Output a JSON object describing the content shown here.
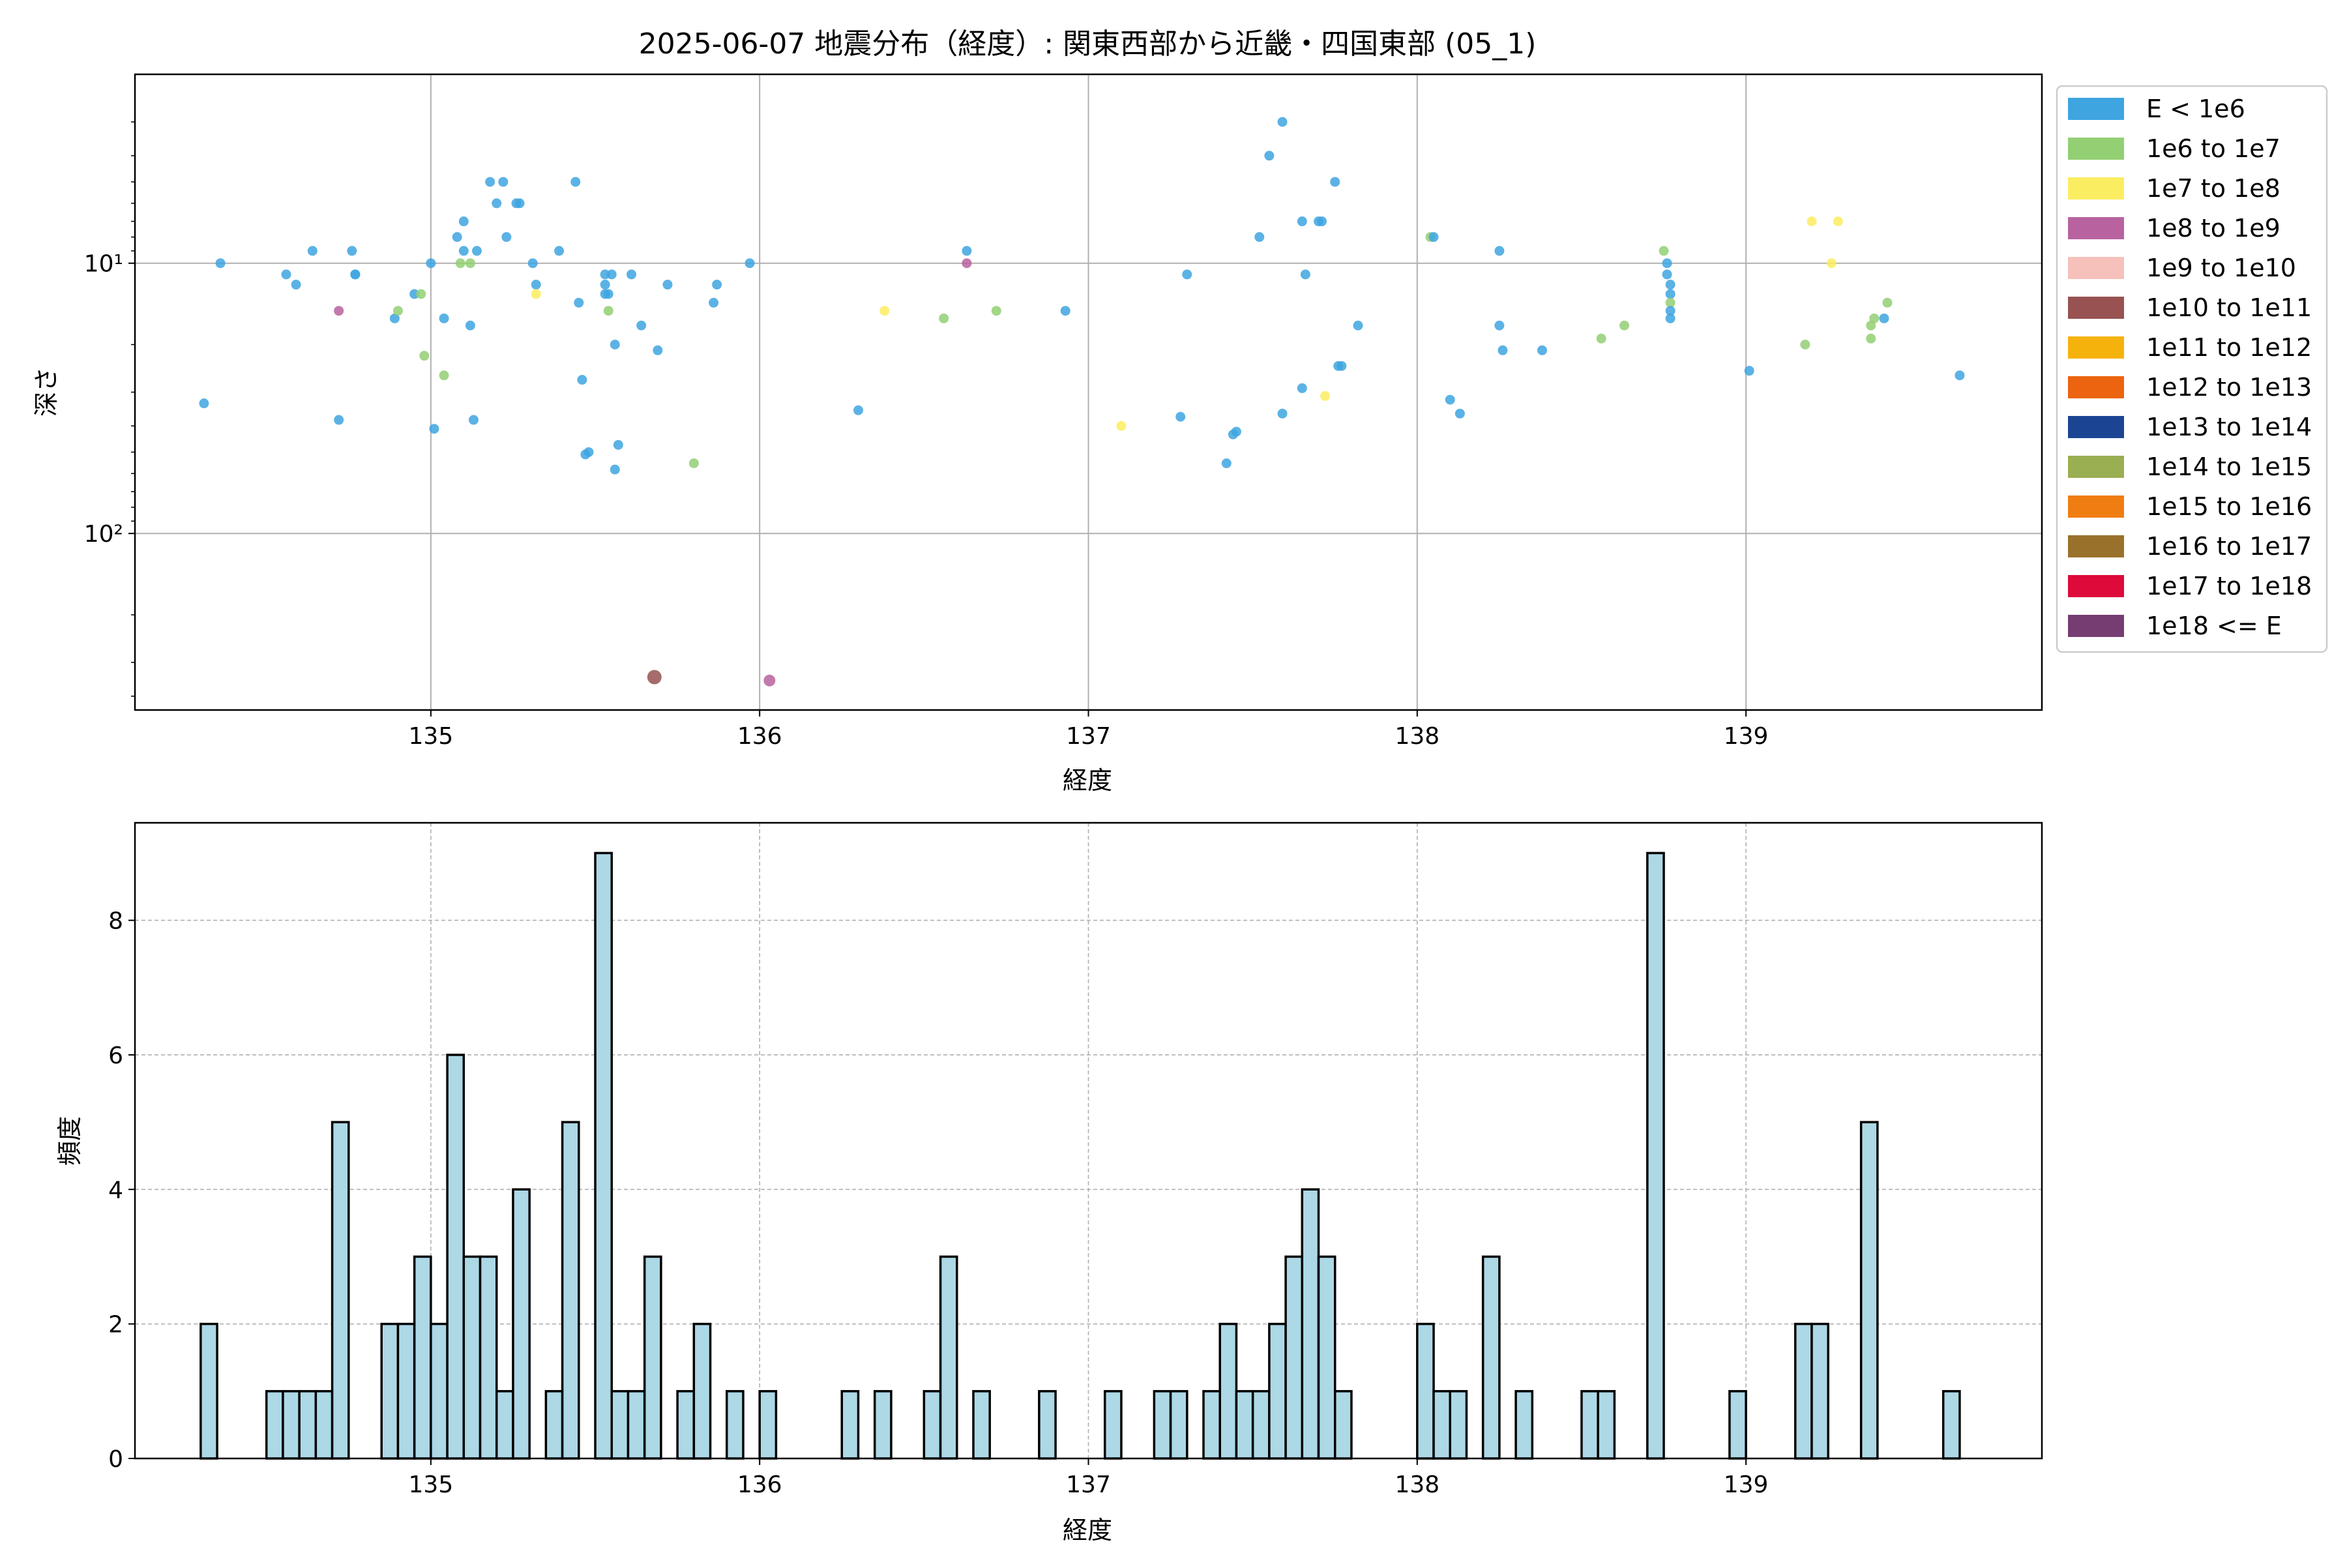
{
  "chart_data": [
    {
      "type": "scatter",
      "title": "2025-06-07 地震分布（経度）: 関東西部から近畿・四国東部 (05_1)",
      "xlabel": "経度",
      "ylabel": "深さ",
      "xlim": [
        134.1,
        139.9
      ],
      "ylim": [
        450,
        2
      ],
      "y_scale": "log",
      "y_inverted": true,
      "grid": true,
      "xticks": [
        135,
        136,
        137,
        138,
        139
      ],
      "yticks": [
        {
          "value": 10,
          "label": "10¹"
        },
        {
          "value": 100,
          "label": "10²"
        }
      ],
      "legend_position": "outside-right",
      "legend": [
        {
          "label": "E < 1e6",
          "color": "#3ea5e0"
        },
        {
          "label": "1e6 to 1e7",
          "color": "#93cf73"
        },
        {
          "label": "1e7 to 1e8",
          "color": "#fbed62"
        },
        {
          "label": "1e8 to 1e9",
          "color": "#b8629f"
        },
        {
          "label": "1e9 to 1e10",
          "color": "#f6c0bb"
        },
        {
          "label": "1e10 to 1e11",
          "color": "#975251"
        },
        {
          "label": "1e11 to 1e12",
          "color": "#f6b20c"
        },
        {
          "label": "1e12 to 1e13",
          "color": "#ec640f"
        },
        {
          "label": "1e13 to 1e14",
          "color": "#1b4593"
        },
        {
          "label": "1e14 to 1e15",
          "color": "#9aae52"
        },
        {
          "label": "1e15 to 1e16",
          "color": "#f07d12"
        },
        {
          "label": "1e16 to 1e17",
          "color": "#9a712b"
        },
        {
          "label": "1e17 to 1e18",
          "color": "#dd0a3a"
        },
        {
          "label": "1e18 <= E",
          "color": "#763d72"
        }
      ],
      "points": [
        [
          134.31,
          33,
          0
        ],
        [
          134.36,
          10,
          0
        ],
        [
          134.56,
          11,
          0
        ],
        [
          134.59,
          12,
          0
        ],
        [
          134.64,
          9,
          0
        ],
        [
          134.72,
          15,
          3
        ],
        [
          134.72,
          38,
          0
        ],
        [
          134.76,
          9,
          0
        ],
        [
          134.77,
          11,
          0
        ],
        [
          134.77,
          11,
          0
        ],
        [
          134.89,
          16,
          0
        ],
        [
          134.9,
          15,
          1
        ],
        [
          134.95,
          13,
          0
        ],
        [
          134.97,
          13,
          1
        ],
        [
          134.98,
          22,
          1
        ],
        [
          135.0,
          10,
          0
        ],
        [
          135.01,
          41,
          0
        ],
        [
          135.04,
          26,
          1
        ],
        [
          135.04,
          16,
          0
        ],
        [
          135.08,
          8,
          0
        ],
        [
          135.09,
          10,
          1
        ],
        [
          135.1,
          9,
          0
        ],
        [
          135.1,
          7,
          0
        ],
        [
          135.12,
          10,
          1
        ],
        [
          135.12,
          17,
          0
        ],
        [
          135.13,
          38,
          0
        ],
        [
          135.14,
          9,
          0
        ],
        [
          135.18,
          5,
          0
        ],
        [
          135.2,
          6,
          0
        ],
        [
          135.22,
          5,
          0
        ],
        [
          135.23,
          8,
          0
        ],
        [
          135.26,
          6,
          0
        ],
        [
          135.27,
          6,
          0
        ],
        [
          135.31,
          10,
          0
        ],
        [
          135.32,
          12,
          0
        ],
        [
          135.32,
          13,
          2
        ],
        [
          135.39,
          9,
          0
        ],
        [
          135.44,
          5,
          0
        ],
        [
          135.45,
          14,
          0
        ],
        [
          135.46,
          27,
          0
        ],
        [
          135.47,
          51,
          0
        ],
        [
          135.48,
          50,
          0
        ],
        [
          135.53,
          11,
          0
        ],
        [
          135.53,
          12,
          0
        ],
        [
          135.53,
          13,
          0
        ],
        [
          135.54,
          15,
          1
        ],
        [
          135.54,
          13,
          0
        ],
        [
          135.55,
          11,
          0
        ],
        [
          135.56,
          20,
          0
        ],
        [
          135.56,
          58,
          0
        ],
        [
          135.57,
          47,
          0
        ],
        [
          135.61,
          11,
          0
        ],
        [
          135.64,
          17,
          0
        ],
        [
          135.68,
          340,
          5
        ],
        [
          135.69,
          21,
          0
        ],
        [
          135.72,
          12,
          0
        ],
        [
          135.8,
          55,
          1
        ],
        [
          135.86,
          14,
          0
        ],
        [
          135.87,
          12,
          0
        ],
        [
          135.97,
          10,
          0
        ],
        [
          136.03,
          350,
          3
        ],
        [
          136.3,
          35,
          0
        ],
        [
          136.38,
          15,
          2
        ],
        [
          136.56,
          16,
          1
        ],
        [
          136.63,
          9,
          0
        ],
        [
          136.63,
          10,
          3
        ],
        [
          136.72,
          15,
          1
        ],
        [
          136.93,
          15,
          0
        ],
        [
          137.1,
          40,
          2
        ],
        [
          137.28,
          37,
          0
        ],
        [
          137.3,
          11,
          0
        ],
        [
          137.42,
          55,
          0
        ],
        [
          137.44,
          43,
          0
        ],
        [
          137.45,
          42,
          0
        ],
        [
          137.52,
          8,
          0
        ],
        [
          137.55,
          4,
          0
        ],
        [
          137.59,
          3,
          0
        ],
        [
          137.59,
          36,
          0
        ],
        [
          137.65,
          7,
          0
        ],
        [
          137.65,
          29,
          0
        ],
        [
          137.66,
          11,
          0
        ],
        [
          137.7,
          7,
          0
        ],
        [
          137.71,
          7,
          0
        ],
        [
          137.72,
          31,
          2
        ],
        [
          137.75,
          5,
          0
        ],
        [
          137.76,
          24,
          0
        ],
        [
          137.77,
          24,
          0
        ],
        [
          137.82,
          17,
          0
        ],
        [
          138.04,
          8,
          1
        ],
        [
          138.05,
          8,
          0
        ],
        [
          138.1,
          32,
          0
        ],
        [
          138.13,
          36,
          0
        ],
        [
          138.25,
          17,
          0
        ],
        [
          138.25,
          9,
          0
        ],
        [
          138.26,
          21,
          0
        ],
        [
          138.38,
          21,
          0
        ],
        [
          138.56,
          19,
          1
        ],
        [
          138.63,
          17,
          1
        ],
        [
          138.75,
          9,
          1
        ],
        [
          138.76,
          10,
          0
        ],
        [
          138.76,
          11,
          0
        ],
        [
          138.77,
          12,
          0
        ],
        [
          138.77,
          13,
          0
        ],
        [
          138.77,
          14,
          1
        ],
        [
          138.77,
          15,
          0
        ],
        [
          138.77,
          16,
          0
        ],
        [
          139.01,
          25,
          0
        ],
        [
          139.18,
          20,
          1
        ],
        [
          139.2,
          7,
          2
        ],
        [
          139.26,
          10,
          2
        ],
        [
          139.28,
          7,
          2
        ],
        [
          139.38,
          19,
          1
        ],
        [
          139.38,
          17,
          1
        ],
        [
          139.39,
          16,
          1
        ],
        [
          139.42,
          16,
          0
        ],
        [
          139.43,
          14,
          1
        ],
        [
          139.65,
          26,
          0
        ]
      ]
    },
    {
      "type": "bar",
      "xlabel": "経度",
      "ylabel": "頻度",
      "xlim": [
        134.1,
        139.9
      ],
      "ylim": [
        0,
        9.45
      ],
      "grid": true,
      "bar_color": "#add8e6",
      "bin_width": 0.05,
      "xticks": [
        135,
        136,
        137,
        138,
        139
      ],
      "yticks": [
        0,
        2,
        4,
        6,
        8
      ],
      "bins": [
        [
          134.3,
          2
        ],
        [
          134.5,
          1
        ],
        [
          134.55,
          1
        ],
        [
          134.6,
          1
        ],
        [
          134.65,
          1
        ],
        [
          134.7,
          5
        ],
        [
          134.85,
          2
        ],
        [
          134.9,
          2
        ],
        [
          134.95,
          3
        ],
        [
          135.0,
          2
        ],
        [
          135.05,
          6
        ],
        [
          135.1,
          3
        ],
        [
          135.15,
          3
        ],
        [
          135.2,
          1
        ],
        [
          135.25,
          4
        ],
        [
          135.35,
          1
        ],
        [
          135.4,
          5
        ],
        [
          135.5,
          9
        ],
        [
          135.55,
          1
        ],
        [
          135.6,
          1
        ],
        [
          135.65,
          3
        ],
        [
          135.75,
          1
        ],
        [
          135.8,
          2
        ],
        [
          135.9,
          1
        ],
        [
          136.0,
          1
        ],
        [
          136.25,
          1
        ],
        [
          136.35,
          1
        ],
        [
          136.5,
          1
        ],
        [
          136.55,
          3
        ],
        [
          136.65,
          1
        ],
        [
          136.85,
          1
        ],
        [
          137.05,
          1
        ],
        [
          137.2,
          1
        ],
        [
          137.25,
          1
        ],
        [
          137.35,
          1
        ],
        [
          137.4,
          2
        ],
        [
          137.45,
          1
        ],
        [
          137.5,
          1
        ],
        [
          137.55,
          2
        ],
        [
          137.6,
          3
        ],
        [
          137.65,
          4
        ],
        [
          137.7,
          3
        ],
        [
          137.75,
          1
        ],
        [
          138.0,
          2
        ],
        [
          138.05,
          1
        ],
        [
          138.1,
          1
        ],
        [
          138.2,
          3
        ],
        [
          138.3,
          1
        ],
        [
          138.5,
          1
        ],
        [
          138.55,
          1
        ],
        [
          138.7,
          9
        ],
        [
          138.95,
          1
        ],
        [
          139.15,
          2
        ],
        [
          139.2,
          2
        ],
        [
          139.35,
          5
        ],
        [
          139.6,
          1
        ]
      ]
    }
  ]
}
